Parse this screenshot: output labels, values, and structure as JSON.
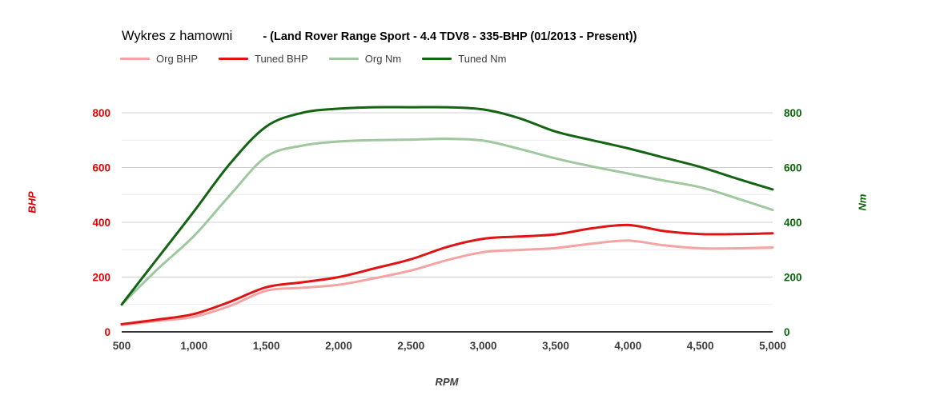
{
  "title": {
    "plain": "Wykres z hamowni",
    "bold": "- (Land Rover Range Sport - 4.4 TDV8 - 335-BHP (01/2013 - Present))"
  },
  "legend": [
    {
      "label": "Org BHP",
      "color": "#f5a3a3"
    },
    {
      "label": "Tuned BHP",
      "color": "#e01414"
    },
    {
      "label": "Org Nm",
      "color": "#9fc89f"
    },
    {
      "label": "Tuned Nm",
      "color": "#146414"
    }
  ],
  "x_axis": {
    "title": "RPM",
    "tick_labels": [
      "500",
      "1,000",
      "1,500",
      "2,000",
      "2,500",
      "3,000",
      "3,500",
      "4,000",
      "4,500",
      "5,000"
    ],
    "tick_values": [
      500,
      1000,
      1500,
      2000,
      2500,
      3000,
      3500,
      4000,
      4500,
      5000
    ],
    "label_color": "#3d3d3d"
  },
  "y_axis_left": {
    "title": "BHP",
    "tick_labels": [
      "0",
      "200",
      "400",
      "600",
      "800"
    ],
    "tick_values": [
      0,
      200,
      400,
      600,
      800
    ],
    "label_color": "#e60000"
  },
  "y_axis_right": {
    "title": "Nm",
    "tick_labels": [
      "0",
      "200",
      "400",
      "600",
      "800"
    ],
    "tick_values": [
      0,
      200,
      400,
      600,
      800
    ],
    "label_color": "#0a640a"
  },
  "chart_data": {
    "type": "line",
    "title": "Wykres z hamowni - (Land Rover Range Sport - 4.4 TDV8 - 335-BHP (01/2013 - Present))",
    "xlabel": "RPM",
    "ylabel_left": "BHP",
    "ylabel_right": "Nm",
    "xlim": [
      500,
      5000
    ],
    "ylim": [
      0,
      880
    ],
    "grid": true,
    "legend_position": "top",
    "x": [
      500,
      750,
      1000,
      1250,
      1500,
      1750,
      2000,
      2250,
      2500,
      2750,
      3000,
      3250,
      3500,
      3750,
      4000,
      4250,
      4500,
      4750,
      5000
    ],
    "series": [
      {
        "name": "Org BHP",
        "axis": "left",
        "color": "#f5a3a3",
        "width": 3,
        "values": [
          25,
          40,
          55,
          95,
          150,
          161,
          172,
          196,
          224,
          262,
          291,
          299,
          306,
          322,
          333,
          316,
          305,
          305,
          308
        ]
      },
      {
        "name": "Tuned BHP",
        "axis": "left",
        "color": "#e01414",
        "width": 3,
        "values": [
          28,
          45,
          65,
          110,
          163,
          181,
          200,
          232,
          265,
          310,
          340,
          348,
          356,
          378,
          390,
          368,
          357,
          357,
          360
        ]
      },
      {
        "name": "Org Nm",
        "axis": "right",
        "color": "#9fc89f",
        "width": 3,
        "values": [
          100,
          230,
          350,
          500,
          640,
          680,
          695,
          700,
          702,
          705,
          698,
          668,
          633,
          604,
          578,
          552,
          528,
          488,
          445
        ]
      },
      {
        "name": "Tuned Nm",
        "axis": "right",
        "color": "#146414",
        "width": 3,
        "values": [
          100,
          270,
          440,
          615,
          750,
          800,
          815,
          820,
          820,
          820,
          812,
          780,
          731,
          700,
          670,
          636,
          602,
          560,
          520
        ]
      }
    ],
    "gridline_minor_values": [
      100,
      300,
      500,
      700
    ],
    "gridline_major_values": [
      200,
      400,
      600,
      800
    ],
    "colors": {
      "grid_major": "#d0d0d0",
      "grid_minor": "#ebebeb",
      "axis_line": "#333333"
    }
  }
}
